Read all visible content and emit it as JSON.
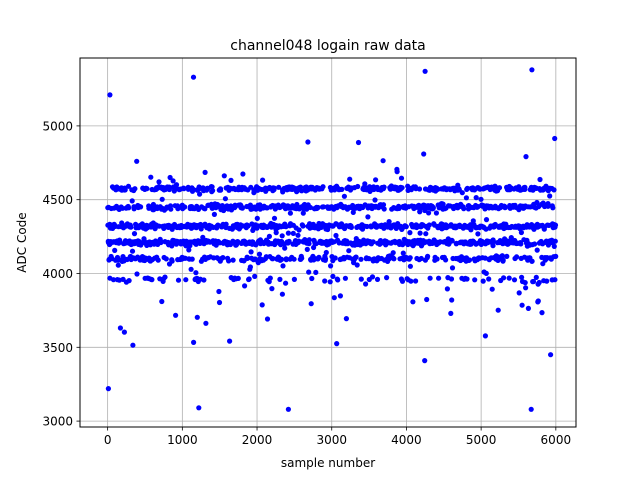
{
  "chart_data": {
    "type": "scatter",
    "title": "channel048 logain raw data",
    "xlabel": "sample number",
    "ylabel": "ADC Code",
    "xlim": [
      -370,
      6270
    ],
    "ylim": [
      2960,
      5460
    ],
    "xticks": [
      0,
      1000,
      2000,
      3000,
      4000,
      5000,
      6000
    ],
    "yticks": [
      3000,
      3500,
      4000,
      4500,
      5000
    ],
    "grid": true,
    "marker_color": "#0000ff",
    "num_samples": 6000,
    "x": [
      0,
      5999
    ],
    "bands": [
      {
        "y": 3960,
        "share": 0.03
      },
      {
        "y": 4100,
        "share": 0.11
      },
      {
        "y": 4210,
        "share": 0.21
      },
      {
        "y": 4320,
        "share": 0.2
      },
      {
        "y": 4450,
        "share": 0.19
      },
      {
        "y": 4575,
        "share": 0.07
      }
    ],
    "outlier_range": [
      3080,
      5380
    ],
    "notable_points": [
      {
        "x": 10,
        "y": 3220
      },
      {
        "x": 30,
        "y": 5210
      },
      {
        "x": 1150,
        "y": 5330
      },
      {
        "x": 1220,
        "y": 3090
      },
      {
        "x": 2420,
        "y": 3080
      },
      {
        "x": 4250,
        "y": 5370
      },
      {
        "x": 5680,
        "y": 5380
      },
      {
        "x": 5670,
        "y": 3080
      },
      {
        "x": 5930,
        "y": 3450
      }
    ]
  }
}
